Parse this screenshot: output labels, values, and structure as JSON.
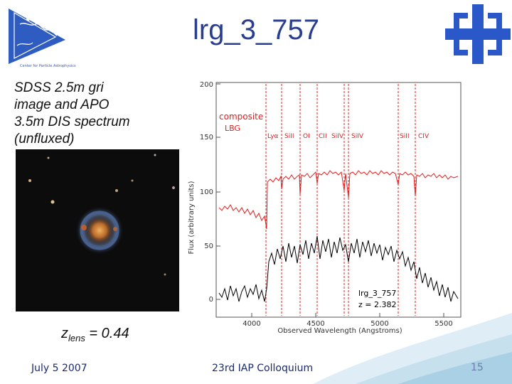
{
  "slide": {
    "title": "lrg_3_757",
    "caption_lines": [
      "SDSS 2.5m gri",
      "image and APO",
      "3.5m DIS spectrum",
      "(unfluxed)"
    ],
    "zlens_symbol": "z",
    "zlens_sub": "lens",
    "zlens_value": " = 0.44"
  },
  "logo_left": {
    "text": "Center for Particle Astrophysics"
  },
  "footer": {
    "date": "July 5 2007",
    "conference": "23rd IAP Colloquium",
    "page": "15"
  },
  "spectrum": {
    "ylabel": "Flux (arbitrary units)",
    "xlabel": "Observed Wavelength (Angstroms)",
    "legend": {
      "composite": "composite",
      "lbg": "LBG"
    },
    "object_label": "lrg_3_757",
    "redshift_label": "z = 2.382",
    "y_ticks": [
      "0",
      "50",
      "100",
      "150",
      "200"
    ],
    "x_ticks": [
      "4000",
      "4500",
      "5000",
      "5500"
    ],
    "lines": [
      "Lyα",
      "SiII",
      "OI",
      "CII",
      "SiIV",
      "SiIV",
      "SiII",
      "CIV"
    ]
  },
  "colors": {
    "title": "#2a3d8f",
    "composite": "#e02020",
    "object": "#000000",
    "accent": "#7aa8c8"
  }
}
